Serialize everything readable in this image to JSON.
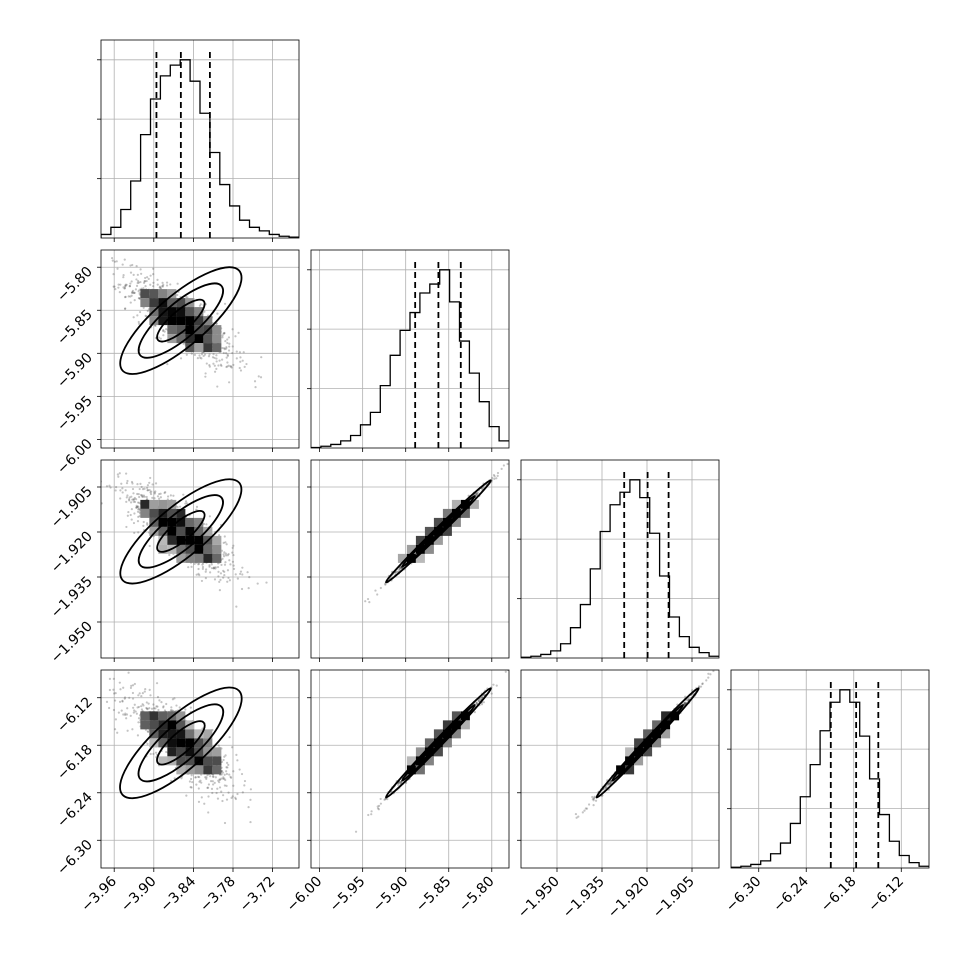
{
  "chart_data": {
    "type": "corner",
    "title": "",
    "parameters": [
      {
        "range": [
          -3.98,
          -3.68
        ],
        "ticks": [
          -3.96,
          -3.9,
          -3.84,
          -3.78,
          -3.72
        ],
        "tick_labels": [
          "−3.96",
          "−3.90",
          "−3.84",
          "−3.78",
          "−3.72"
        ],
        "quantiles": [
          -3.896,
          -3.859,
          -3.815
        ],
        "hist": [
          0.02,
          0.06,
          0.16,
          0.32,
          0.58,
          0.78,
          0.91,
          0.97,
          1.0,
          0.88,
          0.7,
          0.48,
          0.3,
          0.18,
          0.1,
          0.06,
          0.04,
          0.02,
          0.01,
          0.005
        ]
      },
      {
        "range": [
          -6.01,
          -5.78
        ],
        "ticks": [
          -6.0,
          -5.95,
          -5.9,
          -5.85,
          -5.8
        ],
        "tick_labels": [
          "−6.00",
          "−5.95",
          "−5.90",
          "−5.85",
          "−5.80"
        ],
        "quantiles": [
          -5.889,
          -5.862,
          -5.836
        ],
        "hist": [
          0.003,
          0.01,
          0.02,
          0.04,
          0.07,
          0.13,
          0.2,
          0.35,
          0.52,
          0.66,
          0.76,
          0.87,
          0.92,
          1.0,
          0.82,
          0.6,
          0.42,
          0.26,
          0.12,
          0.04
        ]
      },
      {
        "range": [
          -1.962,
          -1.896
        ],
        "ticks": [
          -1.95,
          -1.935,
          -1.92,
          -1.905
        ],
        "tick_labels": [
          "−1.950",
          "−1.935",
          "−1.920",
          "−1.905"
        ],
        "quantiles": [
          -1.9276,
          -1.9198,
          -1.9128
        ],
        "hist": [
          0.004,
          0.01,
          0.02,
          0.04,
          0.08,
          0.17,
          0.3,
          0.5,
          0.71,
          0.86,
          0.93,
          1.0,
          0.9,
          0.7,
          0.46,
          0.23,
          0.12,
          0.06,
          0.03,
          0.01
        ]
      },
      {
        "range": [
          -6.335,
          -6.085
        ],
        "ticks": [
          -6.3,
          -6.24,
          -6.18,
          -6.12
        ],
        "tick_labels": [
          "−6.30",
          "−6.24",
          "−6.18",
          "−6.12"
        ],
        "quantiles": [
          -6.209,
          -6.177,
          -6.149
        ],
        "hist": [
          0.004,
          0.01,
          0.02,
          0.04,
          0.08,
          0.14,
          0.25,
          0.4,
          0.58,
          0.77,
          0.93,
          1.0,
          0.93,
          0.74,
          0.5,
          0.3,
          0.15,
          0.07,
          0.03,
          0.01
        ]
      }
    ],
    "points_per_panel": 900,
    "grid": true,
    "colors": {
      "line": "#000000",
      "grid": "#b0b0b0",
      "points": "#555555"
    }
  }
}
